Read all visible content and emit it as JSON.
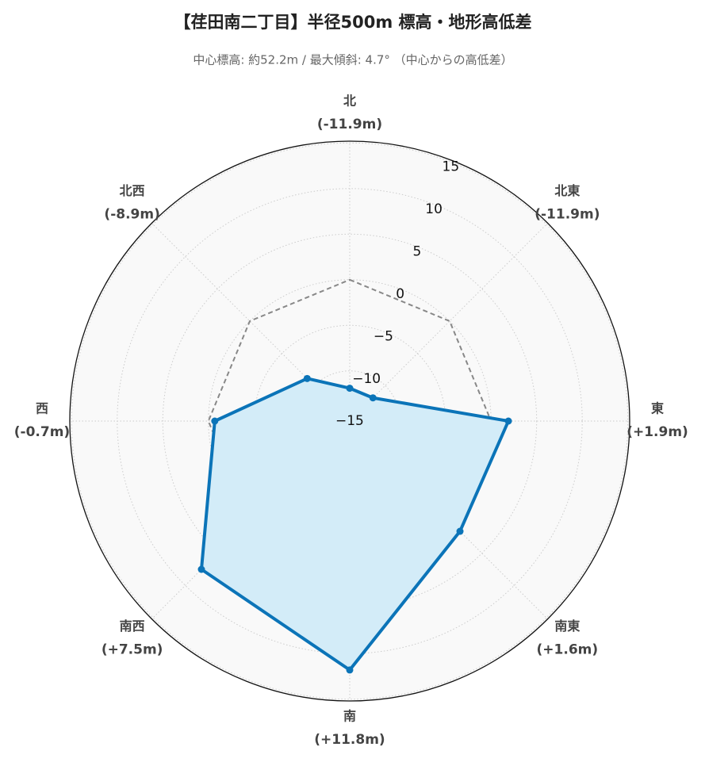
{
  "chart_data": {
    "type": "radar",
    "title": "【荏田南二丁目】半径500m 標高・地形高低差",
    "subtitle": "中心標高: 約52.2m / 最大傾斜: 4.7° （中心からの高低差）",
    "categories": [
      "北",
      "北東",
      "東",
      "南東",
      "南",
      "南西",
      "西",
      "北西"
    ],
    "values": [
      -11.9,
      -11.9,
      1.9,
      1.6,
      11.8,
      7.5,
      -0.7,
      -8.9
    ],
    "value_labels": [
      "(-11.9m)",
      "(-11.9m)",
      "(+1.9m)",
      "(+1.6m)",
      "(+11.8m)",
      "(+7.5m)",
      "(-0.7m)",
      "(-8.9m)"
    ],
    "color": "#0b74b8",
    "fill_color": "#d3ecf8",
    "reference_value": 0,
    "ylim": [
      -15.5,
      15.2
    ],
    "yticks": [
      {
        "value": -15,
        "label": "−15"
      },
      {
        "value": -10,
        "label": "−10"
      },
      {
        "value": -5,
        "label": "−5"
      },
      0,
      5,
      10,
      15
    ],
    "grid": true
  }
}
